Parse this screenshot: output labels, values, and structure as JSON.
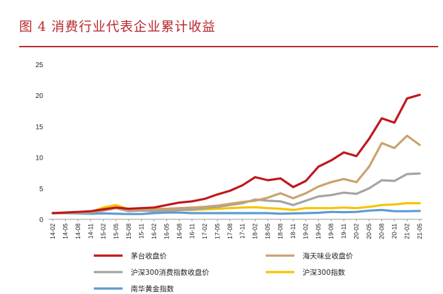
{
  "figure": {
    "title": "图 4  消费行业代表企业累计收益"
  },
  "chart_data": {
    "type": "line",
    "title": "图 4  消费行业代表企业累计收益",
    "xlabel": "",
    "ylabel": "",
    "ylim": [
      0,
      25
    ],
    "yticks": [
      0,
      5,
      10,
      15,
      20,
      25
    ],
    "grid": false,
    "legend_position": "bottom",
    "x": [
      "14-02",
      "14-05",
      "14-08",
      "14-11",
      "15-02",
      "15-05",
      "15-08",
      "15-11",
      "16-02",
      "16-05",
      "16-08",
      "16-11",
      "17-02",
      "17-05",
      "17-08",
      "17-11",
      "18-02",
      "18-05",
      "18-08",
      "18-11",
      "19-02",
      "19-05",
      "19-08",
      "19-11",
      "20-02",
      "20-05",
      "20-08",
      "20-11",
      "21-02",
      "21-05"
    ],
    "series": [
      {
        "name": "茅台收盘价",
        "color": "#c0161c",
        "values": [
          1.0,
          1.1,
          1.2,
          1.3,
          1.6,
          1.9,
          1.7,
          1.8,
          1.9,
          2.3,
          2.7,
          2.9,
          3.3,
          4.0,
          4.6,
          5.5,
          6.8,
          6.3,
          6.6,
          5.2,
          6.2,
          8.5,
          9.5,
          10.8,
          10.2,
          13.0,
          16.3,
          15.6,
          19.5,
          20.1
        ]
      },
      {
        "name": "海天味业收盘价",
        "color": "#c9a26c",
        "values": [
          1.0,
          1.05,
          1.15,
          1.2,
          1.4,
          1.8,
          1.5,
          1.6,
          1.7,
          1.7,
          1.8,
          1.9,
          2.0,
          2.2,
          2.5,
          2.8,
          3.0,
          3.5,
          4.2,
          3.4,
          4.2,
          5.3,
          6.0,
          6.5,
          6.0,
          8.5,
          12.3,
          11.5,
          13.5,
          12.0
        ]
      },
      {
        "name": "沪深300消费指数收盘价",
        "color": "#a3a3a3",
        "values": [
          1.0,
          1.0,
          1.05,
          1.1,
          1.4,
          1.8,
          1.3,
          1.4,
          1.3,
          1.4,
          1.5,
          1.6,
          1.8,
          2.0,
          2.3,
          2.6,
          3.2,
          3.0,
          2.9,
          2.3,
          3.0,
          3.7,
          3.9,
          4.3,
          4.1,
          5.0,
          6.3,
          6.2,
          7.3,
          7.4
        ]
      },
      {
        "name": "沪深300指数",
        "color": "#f6c400",
        "values": [
          1.0,
          1.05,
          1.1,
          1.2,
          1.9,
          2.3,
          1.6,
          1.7,
          1.4,
          1.4,
          1.5,
          1.5,
          1.6,
          1.7,
          1.8,
          1.9,
          1.95,
          1.8,
          1.7,
          1.5,
          1.8,
          1.8,
          1.8,
          1.9,
          1.8,
          2.0,
          2.3,
          2.4,
          2.6,
          2.6
        ]
      },
      {
        "name": "南华黄金指数",
        "color": "#5b9bd5",
        "values": [
          1.0,
          1.0,
          0.95,
          0.9,
          0.95,
          0.9,
          0.85,
          0.85,
          1.0,
          1.1,
          1.1,
          1.0,
          1.0,
          1.0,
          1.0,
          1.0,
          1.0,
          1.0,
          0.9,
          0.95,
          1.0,
          1.05,
          1.2,
          1.15,
          1.2,
          1.4,
          1.5,
          1.3,
          1.3,
          1.35
        ]
      }
    ]
  }
}
